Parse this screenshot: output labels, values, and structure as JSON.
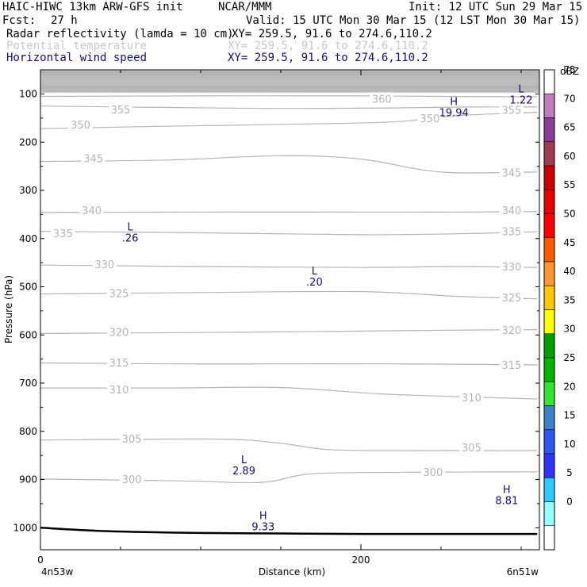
{
  "header": {
    "model": "HAIC-HIWC 13km ARW-GFS init",
    "institution": "NCAR/MMM",
    "init": "Init: 12 UTC Sun 29 Mar 15",
    "fcst_label": "Fcst:",
    "fcst_value": "27 h",
    "valid": "Valid: 15 UTC Mon 30 Mar 15 (12 LST Mon 30 Mar 15)",
    "fields": [
      {
        "name": "Radar reflectivity (lamda = 10 cm)",
        "xy": "XY= 259.5, 91.6 to 274.6,110.2"
      },
      {
        "name": "Potential temperature",
        "xy": "XY= 259.5, 91.6 to 274.6,110.2"
      },
      {
        "name": "Horizontal wind speed",
        "xy": "XY= 259.5, 91.6 to 274.6,110.2"
      }
    ]
  },
  "colors": {
    "potential_temperature": "#b4b4b4",
    "wind_speed_labels": "#101070",
    "terrain": "#000000"
  },
  "chart_data": {
    "type": "cross-section contour",
    "xlabel": "Distance (km)",
    "ylabel": "Pressure (hPa)",
    "x_ticks": [
      0,
      200
    ],
    "y_ticks": [
      100,
      200,
      300,
      400,
      500,
      600,
      700,
      800,
      900,
      1000
    ],
    "xlim": [
      0,
      310
    ],
    "ylim": [
      1050,
      50
    ],
    "x_start_label": "4n53w",
    "x_end_label": "6n51w",
    "colorbar": {
      "title": "dBZ",
      "levels": [
        "0",
        "5",
        "10",
        "15",
        "20",
        "25",
        "30",
        "35",
        "40",
        "45",
        "50",
        "55",
        "60",
        "65",
        "70",
        "75"
      ],
      "colors": [
        "#ffffff",
        "#96ffff",
        "#32c8ff",
        "#3232ff",
        "#2a5af0",
        "#3c82c8",
        "#32e632",
        "#00b400",
        "#00a000",
        "#ffff00",
        "#ffc800",
        "#ff9632",
        "#ff5a00",
        "#ff0000",
        "#e60000",
        "#c80000",
        "#a03c50",
        "#8c3c96",
        "#be7dbe",
        "#ffffff"
      ]
    },
    "theta_contours": [
      {
        "value": 300,
        "label": "300",
        "points": [
          [
            0,
            899
          ],
          [
            90,
            903
          ],
          [
            138,
            906
          ],
          [
            170,
            888
          ],
          [
            230,
            885
          ],
          [
            310,
            884
          ]
        ]
      },
      {
        "value": 305,
        "label": "305",
        "points": [
          [
            0,
            818
          ],
          [
            110,
            816
          ],
          [
            150,
            825
          ],
          [
            180,
            838
          ],
          [
            230,
            840
          ],
          [
            310,
            840
          ]
        ]
      },
      {
        "value": 310,
        "label": "310",
        "points": [
          [
            0,
            710
          ],
          [
            80,
            710
          ],
          [
            150,
            709
          ],
          [
            210,
            722
          ],
          [
            260,
            728
          ],
          [
            310,
            733
          ]
        ]
      },
      {
        "value": 315,
        "label": "315",
        "points": [
          [
            0,
            658
          ],
          [
            80,
            660
          ],
          [
            150,
            660
          ],
          [
            220,
            660
          ],
          [
            310,
            662
          ]
        ]
      },
      {
        "value": 320,
        "label": "320",
        "points": [
          [
            0,
            597
          ],
          [
            100,
            595
          ],
          [
            200,
            592
          ],
          [
            260,
            590
          ],
          [
            310,
            589
          ]
        ]
      },
      {
        "value": 325,
        "label": "325",
        "points": [
          [
            0,
            515
          ],
          [
            100,
            512
          ],
          [
            200,
            510
          ],
          [
            260,
            520
          ],
          [
            310,
            525
          ]
        ]
      },
      {
        "value": 330,
        "label": "330",
        "points": [
          [
            0,
            455
          ],
          [
            100,
            458
          ],
          [
            200,
            460
          ],
          [
            260,
            458
          ],
          [
            310,
            460
          ]
        ]
      },
      {
        "value": 335,
        "label": "335",
        "points": [
          [
            0,
            385
          ],
          [
            100,
            388
          ],
          [
            200,
            392
          ],
          [
            260,
            390
          ],
          [
            310,
            386
          ]
        ]
      },
      {
        "value": 340,
        "label": "340",
        "points": [
          [
            0,
            346
          ],
          [
            100,
            345
          ],
          [
            200,
            345
          ],
          [
            260,
            345
          ],
          [
            310,
            344
          ]
        ]
      },
      {
        "value": 345,
        "label": "345",
        "points": [
          [
            0,
            240
          ],
          [
            80,
            237
          ],
          [
            150,
            228
          ],
          [
            200,
            235
          ],
          [
            250,
            262
          ],
          [
            310,
            262
          ]
        ]
      },
      {
        "value": 350,
        "label": "350",
        "points": [
          [
            0,
            172
          ],
          [
            60,
            168
          ],
          [
            150,
            163
          ],
          [
            220,
            158
          ],
          [
            260,
            145
          ],
          [
            310,
            138
          ]
        ]
      },
      {
        "value": 355,
        "label": "355",
        "points": [
          [
            0,
            125
          ],
          [
            80,
            128
          ],
          [
            150,
            130
          ],
          [
            220,
            129
          ],
          [
            265,
            127
          ],
          [
            310,
            127
          ]
        ]
      },
      {
        "value": 360,
        "label": "360",
        "points": [
          [
            0,
            105
          ],
          [
            100,
            104
          ],
          [
            200,
            104
          ],
          [
            250,
            105
          ],
          [
            310,
            106
          ]
        ]
      }
    ],
    "theta_labels": [
      {
        "text": "355",
        "x": 50,
        "p": 132
      },
      {
        "text": "350",
        "x": 25,
        "p": 163
      },
      {
        "text": "345",
        "x": 33,
        "p": 233
      },
      {
        "text": "340",
        "x": 32,
        "p": 341
      },
      {
        "text": "335",
        "x": 14,
        "p": 389
      },
      {
        "text": "330",
        "x": 40,
        "p": 453
      },
      {
        "text": "325",
        "x": 49,
        "p": 513
      },
      {
        "text": "320",
        "x": 49,
        "p": 594
      },
      {
        "text": "315",
        "x": 49,
        "p": 657
      },
      {
        "text": "310",
        "x": 49,
        "p": 713
      },
      {
        "text": "305",
        "x": 57,
        "p": 815
      },
      {
        "text": "300",
        "x": 57,
        "p": 899
      },
      {
        "text": "360",
        "x": 213,
        "p": 110
      },
      {
        "text": "350",
        "x": 243,
        "p": 150
      },
      {
        "text": "355",
        "x": 294,
        "p": 133
      },
      {
        "text": "345",
        "x": 294,
        "p": 263
      },
      {
        "text": "340",
        "x": 294,
        "p": 341
      },
      {
        "text": "335",
        "x": 294,
        "p": 385
      },
      {
        "text": "330",
        "x": 294,
        "p": 458
      },
      {
        "text": "325",
        "x": 294,
        "p": 522
      },
      {
        "text": "320",
        "x": 294,
        "p": 590
      },
      {
        "text": "315",
        "x": 294,
        "p": 662
      },
      {
        "text": "310",
        "x": 269,
        "p": 730
      },
      {
        "text": "305",
        "x": 269,
        "p": 833
      },
      {
        "text": "300",
        "x": 245,
        "p": 884
      }
    ],
    "wind_extrema": [
      {
        "type": "L",
        "value": ".26",
        "x": 56,
        "p": 385
      },
      {
        "type": "L",
        "value": ".20",
        "x": 171,
        "p": 476
      },
      {
        "type": "L",
        "value": "2.89",
        "x": 127,
        "p": 868
      },
      {
        "type": "H",
        "value": "9.33",
        "x": 139,
        "p": 984
      },
      {
        "type": "H",
        "value": "8.81",
        "x": 291,
        "p": 930
      },
      {
        "type": "H",
        "value": "19.94",
        "x": 258,
        "p": 125
      },
      {
        "type": "L",
        "value": "1.22",
        "x": 300,
        "p": 98
      }
    ],
    "terrain_surface": [
      [
        0,
        1000
      ],
      [
        40,
        1007
      ],
      [
        100,
        1011
      ],
      [
        150,
        1012
      ],
      [
        200,
        1013
      ],
      [
        310,
        1013
      ]
    ],
    "stratosphere_band_top_p": 50,
    "stratosphere_band_bottom_p": 97
  }
}
